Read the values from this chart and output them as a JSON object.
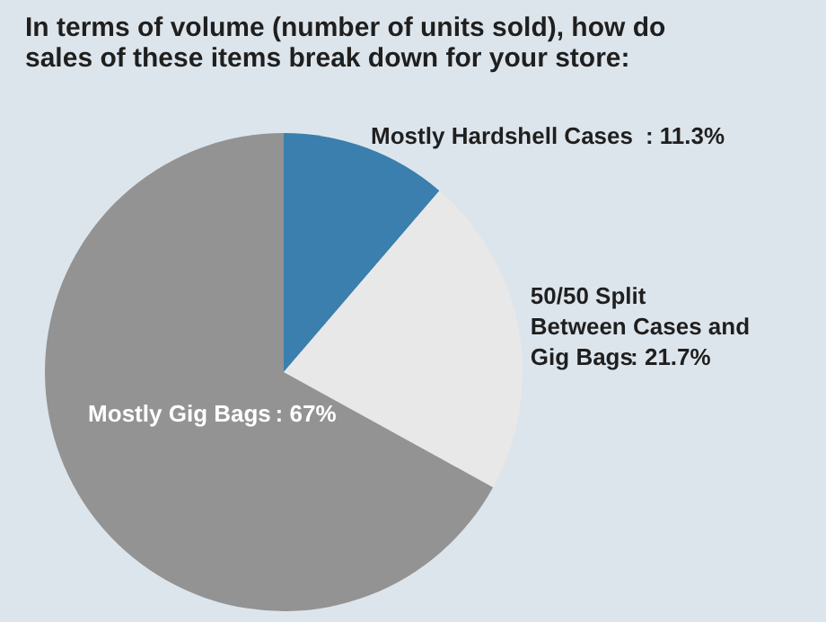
{
  "chart_data": {
    "type": "pie",
    "title": "In terms of volume (number of units sold), how do sales of these items break down for your store:",
    "categories": [
      "Mostly Hardshell Cases",
      "50/50 Split Between Cases and Gig Bags",
      "Mostly Gig Bags"
    ],
    "values": [
      11.3,
      21.7,
      67
    ],
    "value_labels": [
      ": 11.3%",
      ": 21.7%",
      ": 67%"
    ],
    "colors": [
      "#3a7fad",
      "#e8e8e8",
      "#939393"
    ]
  }
}
